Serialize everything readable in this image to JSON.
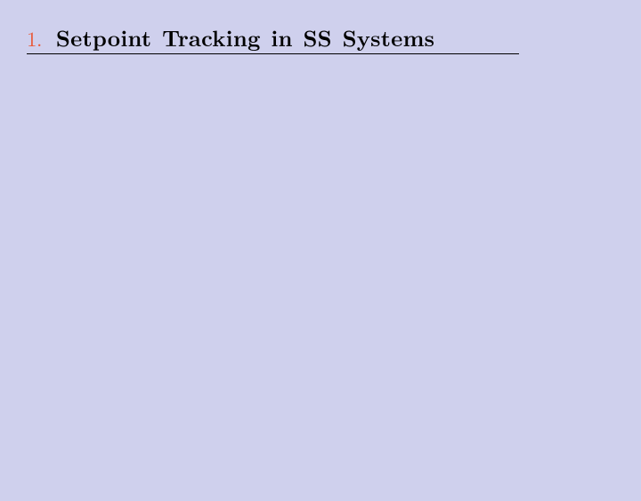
{
  "slide": {
    "section_number": "1.",
    "section_title": "Setpoint Tracking in SS Systems",
    "background_color": "#cfd0ed",
    "number_color": "#e85a3a",
    "title_color": "#000000",
    "underline_color": "#000000",
    "title_fontsize": 25,
    "number_fontsize": 23,
    "underline_width": 553
  }
}
